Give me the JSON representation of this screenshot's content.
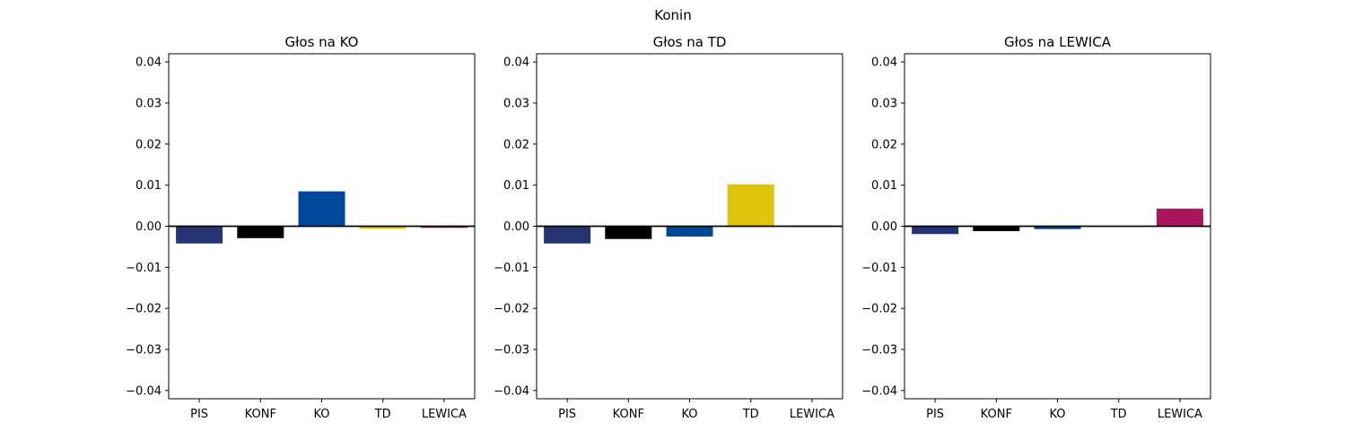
{
  "chart_data": {
    "suptitle": "Konin",
    "charts": [
      {
        "type": "bar",
        "title": "Głos na KO",
        "categories": [
          "PIS",
          "KONF",
          "KO",
          "TD",
          "LEWICA"
        ],
        "values": [
          -0.0042,
          -0.0029,
          0.0085,
          -0.0006,
          -0.0004
        ],
        "ylim": [
          -0.042,
          0.042
        ],
        "yticks": [
          -0.04,
          -0.03,
          -0.02,
          -0.01,
          0.0,
          0.01,
          0.02,
          0.03,
          0.04
        ],
        "ytick_labels": [
          "−0.04",
          "−0.03",
          "−0.02",
          "−0.01",
          "0.00",
          "0.01",
          "0.02",
          "0.03",
          "0.04"
        ],
        "xlabel": "",
        "ylabel": "",
        "grid": false
      },
      {
        "type": "bar",
        "title": "Głos na TD",
        "categories": [
          "PIS",
          "KONF",
          "KO",
          "TD",
          "LEWICA"
        ],
        "values": [
          -0.0042,
          -0.0031,
          -0.0025,
          0.0102,
          0.0
        ],
        "ylim": [
          -0.042,
          0.042
        ],
        "yticks": [
          -0.04,
          -0.03,
          -0.02,
          -0.01,
          0.0,
          0.01,
          0.02,
          0.03,
          0.04
        ],
        "ytick_labels": [
          "−0.04",
          "−0.03",
          "−0.02",
          "−0.01",
          "0.00",
          "0.01",
          "0.02",
          "0.03",
          "0.04"
        ],
        "xlabel": "",
        "ylabel": "",
        "grid": false
      },
      {
        "type": "bar",
        "title": "Głos na LEWICA",
        "categories": [
          "PIS",
          "KONF",
          "KO",
          "TD",
          "LEWICA"
        ],
        "values": [
          -0.0019,
          -0.0012,
          -0.0007,
          -0.0001,
          0.0043
        ],
        "ylim": [
          -0.042,
          0.042
        ],
        "yticks": [
          -0.04,
          -0.03,
          -0.02,
          -0.01,
          0.0,
          0.01,
          0.02,
          0.03,
          0.04
        ],
        "ytick_labels": [
          "−0.04",
          "−0.03",
          "−0.02",
          "−0.01",
          "0.00",
          "0.01",
          "0.02",
          "0.03",
          "0.04"
        ],
        "xlabel": "",
        "ylabel": "",
        "grid": false
      }
    ],
    "colors": {
      "PIS": "#263475",
      "KONF": "#000000",
      "KO": "#00489A",
      "TD": "#DEC40E",
      "LEWICA": "#A9165B"
    },
    "zero_line_color": "#000000"
  }
}
